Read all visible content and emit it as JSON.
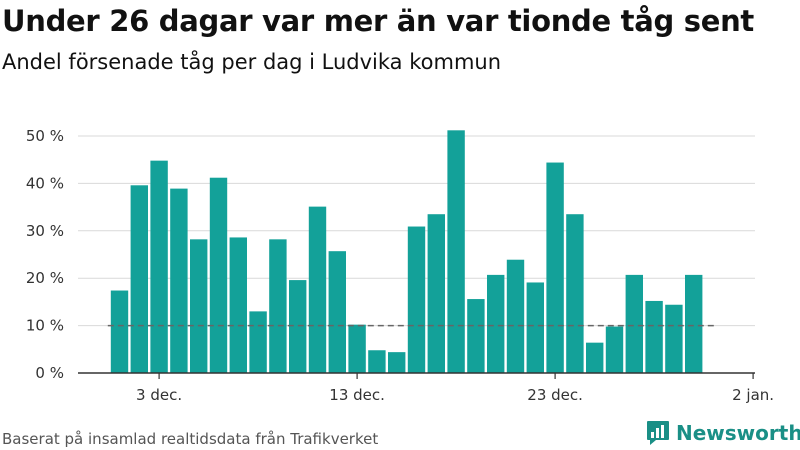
{
  "header": {
    "title": "Under 26 dagar var mer än var tionde tåg sent",
    "subtitle": "Andel försenade tåg per dag i Ludvika kommun"
  },
  "footer": {
    "source": "Baserat på insamlad realtidsdata från Trafikverket",
    "brand": "Newsworthy"
  },
  "colors": {
    "bar": "#13a199",
    "grid": "#d9d9d9",
    "reference": "#666666",
    "brand": "#1a8f86"
  },
  "chart_data": {
    "type": "bar",
    "categories": [
      "1 dec.",
      "2 dec.",
      "3 dec.",
      "4 dec.",
      "5 dec.",
      "6 dec.",
      "7 dec.",
      "8 dec.",
      "9 dec.",
      "10 dec.",
      "11 dec.",
      "12 dec.",
      "13 dec.",
      "14 dec.",
      "15 dec.",
      "16 dec.",
      "17 dec.",
      "18 dec.",
      "19 dec.",
      "20 dec.",
      "21 dec.",
      "22 dec.",
      "23 dec.",
      "24 dec.",
      "25 dec.",
      "26 dec.",
      "27 dec.",
      "28 dec.",
      "29 dec.",
      "30 dec."
    ],
    "values": [
      17.4,
      39.6,
      44.8,
      38.9,
      28.2,
      41.2,
      28.6,
      13.0,
      28.2,
      19.6,
      35.1,
      25.7,
      10.2,
      4.8,
      4.4,
      30.9,
      33.5,
      51.2,
      15.6,
      20.7,
      23.9,
      19.1,
      44.4,
      33.5,
      6.4,
      9.8,
      20.7,
      15.2,
      14.4,
      20.7
    ],
    "reference_line": 10,
    "ylim": [
      0,
      50
    ],
    "y_ticks": [
      {
        "value": 0,
        "label": "0 %"
      },
      {
        "value": 10,
        "label": "10 %"
      },
      {
        "value": 20,
        "label": "20 %"
      },
      {
        "value": 30,
        "label": "30 %"
      },
      {
        "value": 40,
        "label": "40 %"
      },
      {
        "value": 50,
        "label": "50 %"
      }
    ],
    "x_ticks": [
      {
        "index": 2,
        "label": "3 dec."
      },
      {
        "index": 12,
        "label": "13 dec."
      },
      {
        "index": 22,
        "label": "23 dec."
      },
      {
        "index": 32,
        "label": "2 jan."
      }
    ],
    "grid": true,
    "legend": "none",
    "xlabel": "",
    "ylabel": ""
  }
}
